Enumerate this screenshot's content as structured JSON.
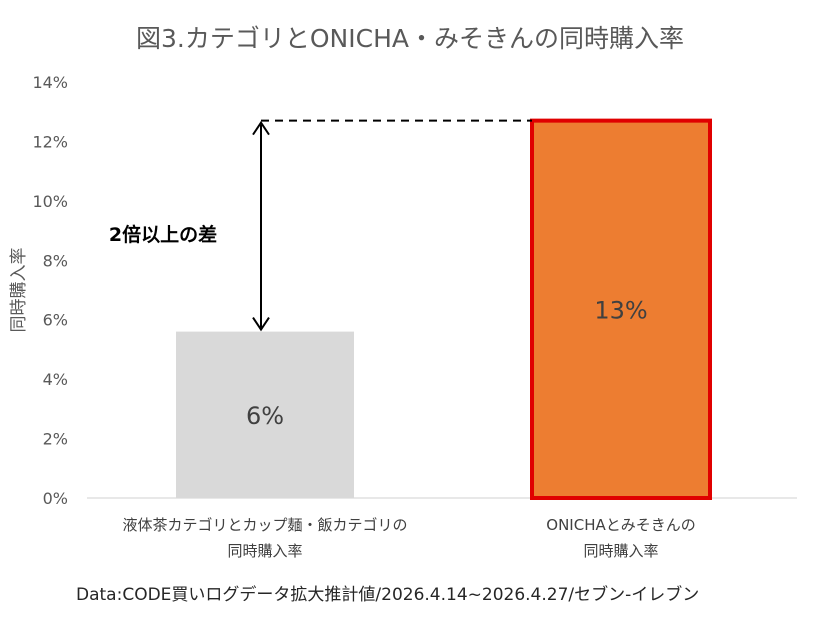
{
  "chart_data": {
    "type": "bar",
    "title": "図3.カテゴリとONICHA・みそきんの同時購入率",
    "ylabel": "同時購入率",
    "xlabel": "",
    "categories": [
      [
        "液体茶カテゴリとカップ麺・飯カテゴリの",
        "同時購入率"
      ],
      [
        "ONICHAとみそきんの",
        "同時購入率"
      ]
    ],
    "values": [
      5.6,
      12.7
    ],
    "data_labels": [
      "6%",
      "13%"
    ],
    "ylim": [
      0,
      14
    ],
    "yticks": [
      0,
      2,
      4,
      6,
      8,
      10,
      12,
      14
    ],
    "ytick_labels": [
      "0%",
      "2%",
      "4%",
      "6%",
      "8%",
      "10%",
      "12%",
      "14%"
    ],
    "colors": {
      "bar_1_fill": "#d9d9d9",
      "bar_2_fill": "#ed7d31",
      "bar_2_border": "#e00000",
      "axis": "#d9d9d9"
    },
    "grid": false,
    "legend": "none",
    "annotation": "2倍以上の差",
    "source": "Data:CODE買いログデータ拡大推計値/2026.4.14~2026.4.27/セブン-イレブン"
  }
}
